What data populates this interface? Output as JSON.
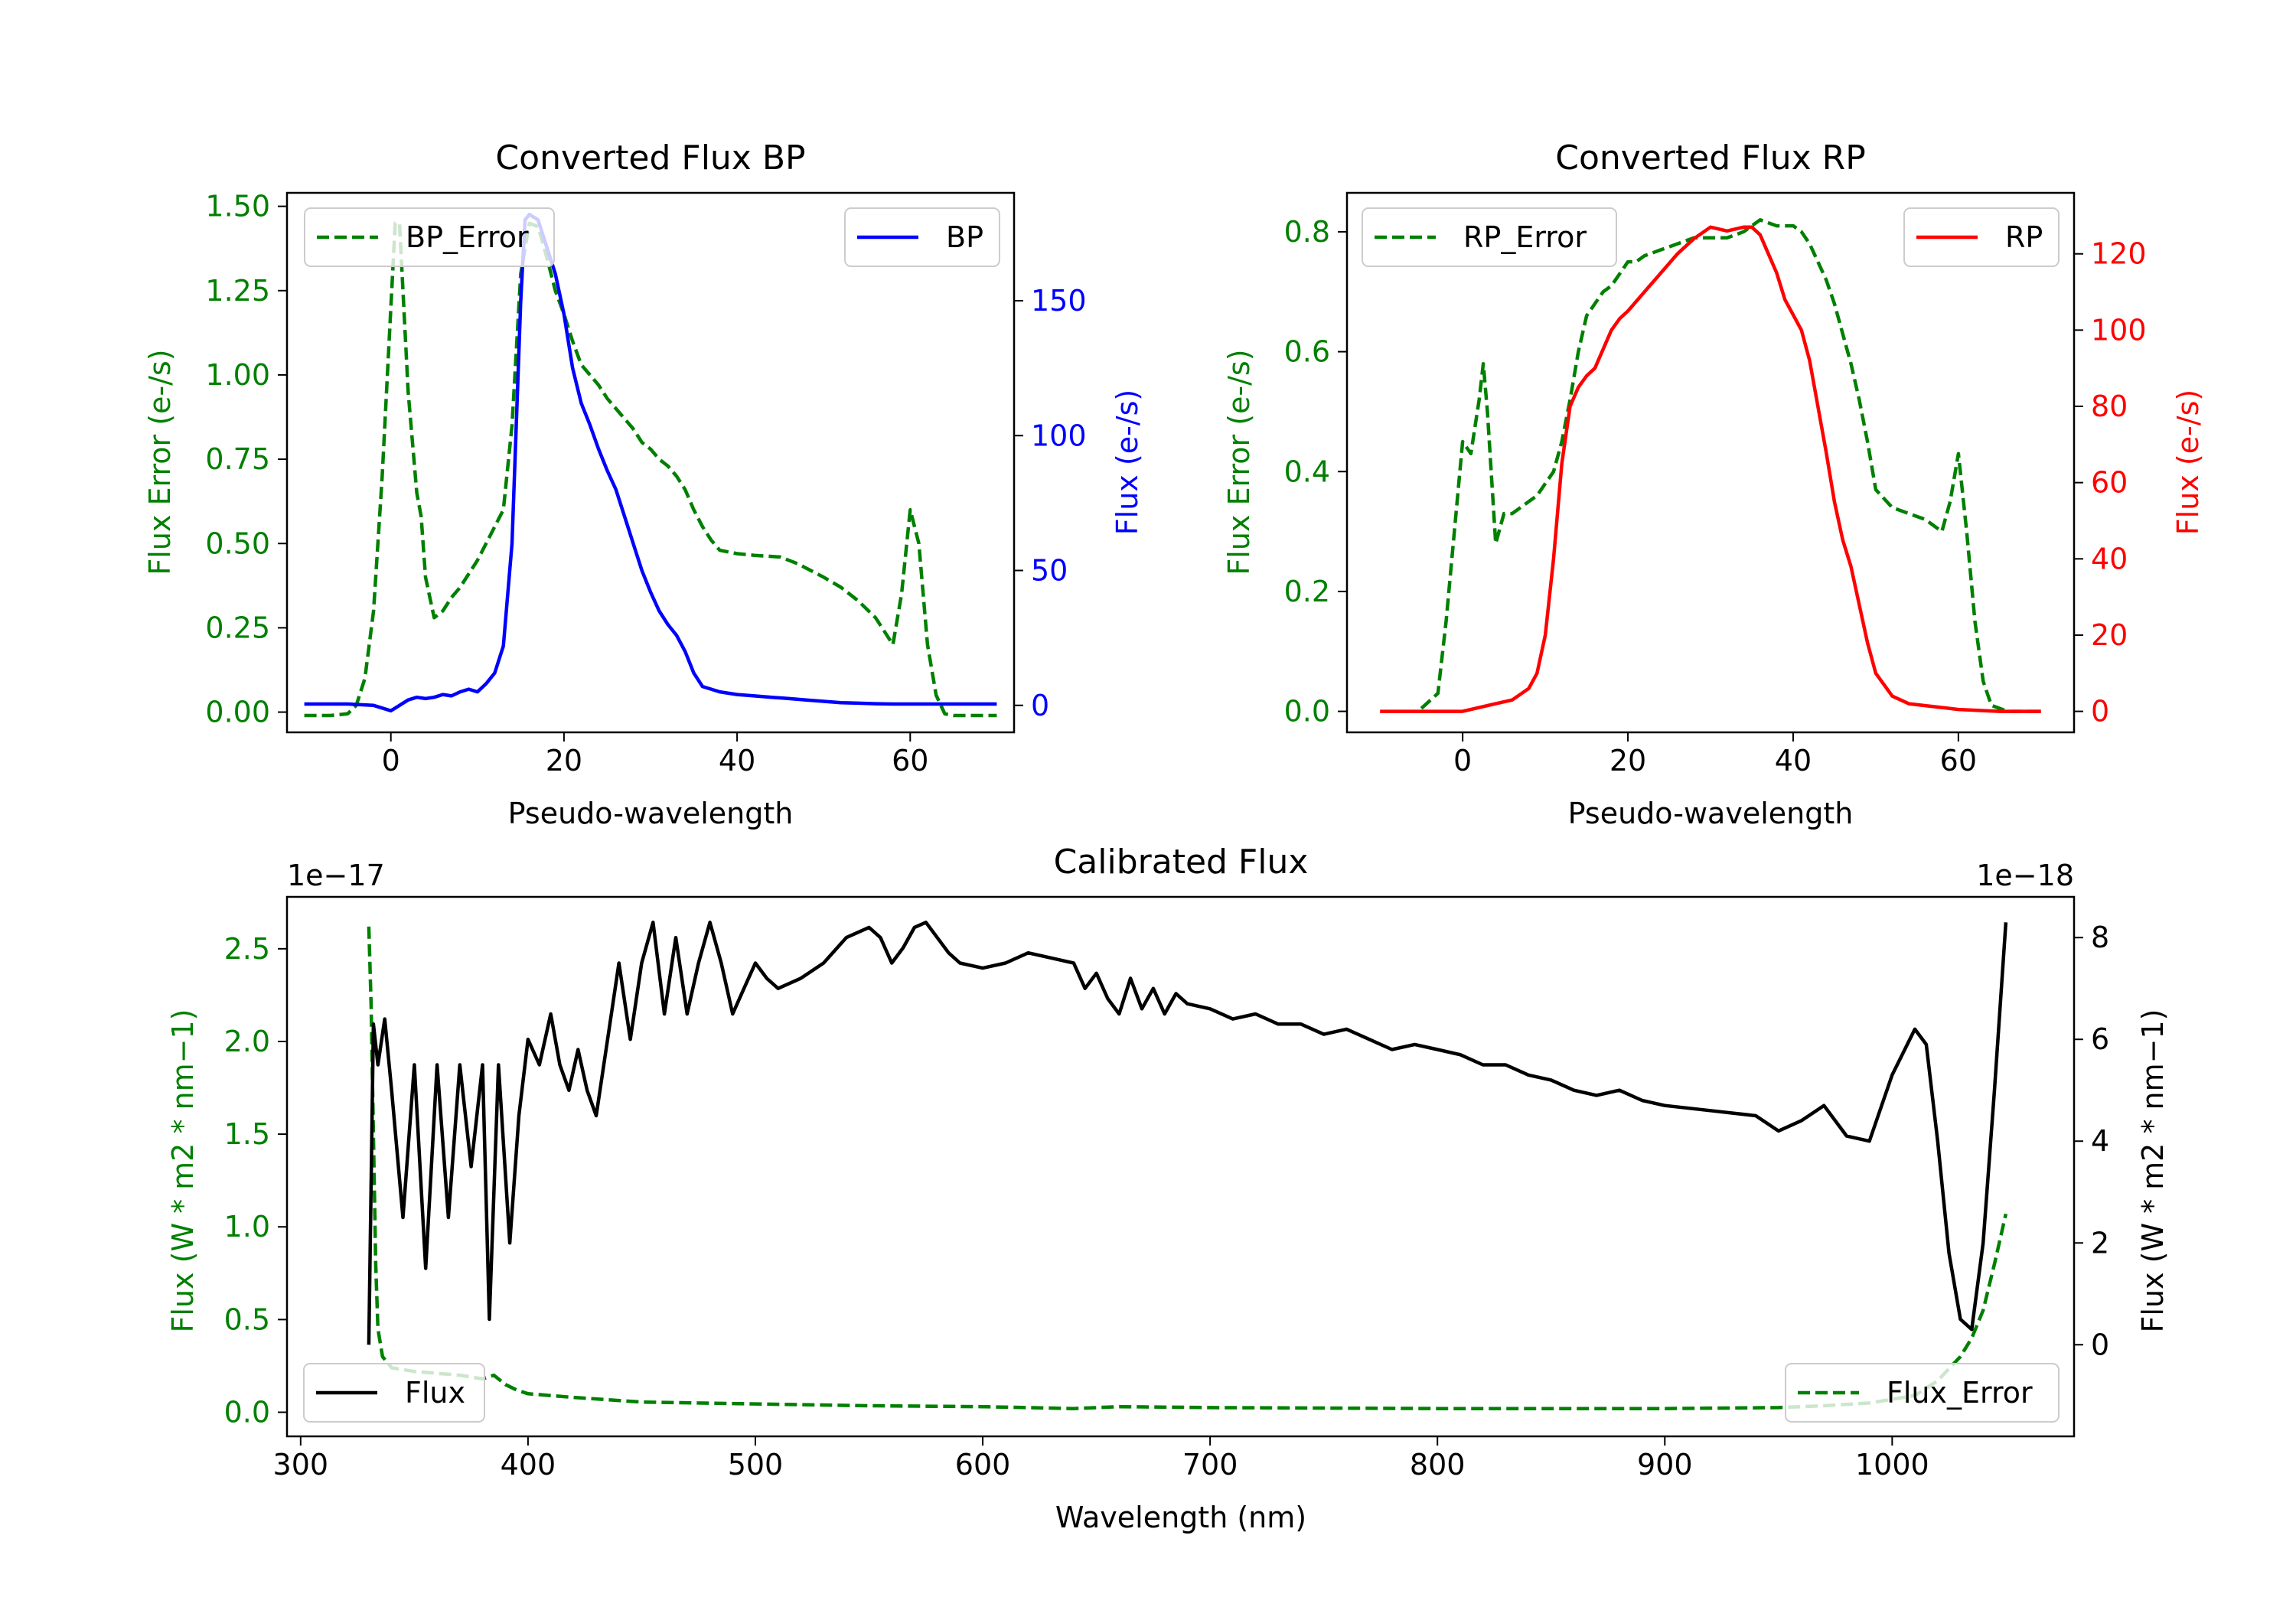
{
  "chart_data": [
    {
      "id": "bp",
      "type": "line",
      "title": "Converted Flux BP",
      "xlabel": "Pseudo-wavelength",
      "ylabel_left": "Flux Error (e-/s)",
      "ylabel_right": "Flux (e-/s)",
      "xlim": [
        -12,
        72
      ],
      "ylim_left": [
        -0.06,
        1.54
      ],
      "ylim_right": [
        -10,
        190
      ],
      "xticks": [
        0,
        20,
        40,
        60
      ],
      "yticks_left": [
        "0.00",
        "0.25",
        "0.50",
        "0.75",
        "1.00",
        "1.25",
        "1.50"
      ],
      "yticks_right": [
        "0",
        "50",
        "100",
        "150"
      ],
      "series": [
        {
          "name": "BP_Error",
          "axis": "left",
          "color": "#008000",
          "dash": "dashed",
          "x": [
            -10,
            -7,
            -5,
            -4,
            -3,
            -2,
            -1,
            0,
            0.5,
            1,
            2,
            3,
            3.5,
            4,
            5,
            6,
            7,
            8,
            9,
            10,
            11,
            12,
            13,
            14,
            15,
            16,
            17,
            18,
            19,
            20,
            21,
            22,
            23,
            24,
            25,
            26,
            27,
            28,
            29,
            30,
            31,
            32,
            33,
            34,
            35,
            36,
            37,
            38,
            40,
            42,
            45,
            47,
            50,
            52,
            54,
            56,
            57,
            58,
            59,
            60,
            61,
            62,
            63,
            64,
            65,
            67,
            69,
            70
          ],
          "y": [
            -0.01,
            -0.01,
            -0.005,
            0.02,
            0.1,
            0.3,
            0.7,
            1.2,
            1.45,
            1.45,
            0.95,
            0.65,
            0.58,
            0.4,
            0.28,
            0.3,
            0.34,
            0.37,
            0.41,
            0.45,
            0.5,
            0.55,
            0.6,
            0.85,
            1.3,
            1.45,
            1.44,
            1.35,
            1.25,
            1.18,
            1.1,
            1.03,
            1.0,
            0.97,
            0.93,
            0.9,
            0.87,
            0.84,
            0.8,
            0.78,
            0.75,
            0.73,
            0.7,
            0.66,
            0.6,
            0.55,
            0.51,
            0.48,
            0.47,
            0.465,
            0.46,
            0.44,
            0.4,
            0.37,
            0.33,
            0.28,
            0.24,
            0.2,
            0.35,
            0.6,
            0.5,
            0.2,
            0.05,
            -0.005,
            -0.01,
            -0.01,
            -0.01,
            -0.01
          ]
        },
        {
          "name": "BP",
          "axis": "right",
          "color": "#0000ff",
          "dash": "solid",
          "x": [
            -10,
            -5,
            -2,
            0,
            1,
            2,
            3,
            4,
            5,
            6,
            7,
            8,
            9,
            10,
            11,
            12,
            13,
            14,
            15,
            15.5,
            16,
            17,
            18,
            19,
            20,
            21,
            22,
            23,
            24,
            25,
            26,
            27,
            28,
            29,
            30,
            31,
            32,
            33,
            34,
            35,
            36,
            38,
            40,
            42,
            44,
            46,
            48,
            50,
            52,
            54,
            56,
            58,
            60,
            62,
            65,
            70
          ],
          "y": [
            0.5,
            0.5,
            0,
            -2,
            0,
            2,
            3,
            2.5,
            3,
            4,
            3.5,
            5,
            6,
            5,
            8,
            12,
            22,
            60,
            150,
            180,
            182,
            180,
            170,
            160,
            145,
            125,
            112,
            104,
            95,
            87,
            80,
            70,
            60,
            50,
            42,
            35,
            30,
            26,
            20,
            12,
            7,
            5,
            4,
            3.5,
            3,
            2.5,
            2,
            1.5,
            1,
            0.8,
            0.6,
            0.5,
            0.5,
            0.5,
            0.5,
            0.5
          ]
        }
      ],
      "legend": [
        {
          "label": "BP_Error",
          "position": "upper-left"
        },
        {
          "label": "BP",
          "position": "upper-right"
        }
      ]
    },
    {
      "id": "rp",
      "type": "line",
      "title": "Converted Flux RP",
      "xlabel": "Pseudo-wavelength",
      "ylabel_left": "Flux Error (e-/s)",
      "ylabel_right": "Flux (e-/s)",
      "xlim": [
        -14,
        74
      ],
      "ylim_left": [
        -0.035,
        0.865
      ],
      "ylim_right": [
        -5.5,
        136
      ],
      "xticks": [
        0,
        20,
        40,
        60
      ],
      "yticks_left": [
        "0.0",
        "0.2",
        "0.4",
        "0.6",
        "0.8"
      ],
      "yticks_right": [
        "0",
        "20",
        "40",
        "60",
        "80",
        "100",
        "120"
      ],
      "series": [
        {
          "name": "RP_Error",
          "axis": "left",
          "color": "#008000",
          "dash": "dashed",
          "x": [
            -5,
            -3,
            -2,
            -1,
            0,
            1,
            2,
            2.5,
            3,
            4,
            5,
            6,
            7,
            8,
            9,
            10,
            11,
            12,
            13,
            14,
            15,
            16,
            17,
            18,
            19,
            20,
            21,
            22,
            24,
            26,
            28,
            30,
            32,
            34,
            35,
            36,
            38,
            40,
            41,
            42,
            43,
            44,
            45,
            46,
            47,
            48,
            49,
            50,
            52,
            54,
            56,
            57,
            58,
            59,
            60,
            61,
            62,
            63,
            64,
            66,
            70
          ],
          "y": [
            0.005,
            0.03,
            0.15,
            0.3,
            0.45,
            0.43,
            0.52,
            0.58,
            0.5,
            0.28,
            0.33,
            0.33,
            0.34,
            0.35,
            0.36,
            0.38,
            0.4,
            0.45,
            0.52,
            0.6,
            0.66,
            0.68,
            0.7,
            0.71,
            0.73,
            0.75,
            0.75,
            0.76,
            0.77,
            0.78,
            0.79,
            0.79,
            0.79,
            0.8,
            0.81,
            0.82,
            0.81,
            0.81,
            0.8,
            0.78,
            0.75,
            0.72,
            0.68,
            0.63,
            0.58,
            0.52,
            0.45,
            0.37,
            0.34,
            0.33,
            0.32,
            0.31,
            0.3,
            0.35,
            0.43,
            0.3,
            0.15,
            0.05,
            0.01,
            0,
            0
          ]
        },
        {
          "name": "RP",
          "axis": "right",
          "color": "#ff0000",
          "dash": "solid",
          "x": [
            -10,
            -5,
            0,
            2,
            4,
            6,
            8,
            9,
            10,
            11,
            12,
            13,
            14,
            15,
            16,
            17,
            18,
            19,
            20,
            22,
            24,
            26,
            28,
            30,
            32,
            34,
            35,
            36,
            37,
            38,
            39,
            40,
            41,
            42,
            43,
            44,
            45,
            46,
            47,
            48,
            49,
            50,
            52,
            54,
            56,
            58,
            60,
            65,
            70
          ],
          "y": [
            0,
            0,
            0,
            1,
            2,
            3,
            6,
            10,
            20,
            40,
            65,
            80,
            85,
            88,
            90,
            95,
            100,
            103,
            105,
            110,
            115,
            120,
            124,
            127,
            126,
            127,
            127,
            125,
            120,
            115,
            108,
            104,
            100,
            92,
            80,
            68,
            55,
            45,
            38,
            28,
            18,
            10,
            4,
            2,
            1.5,
            1,
            0.5,
            0,
            0
          ]
        }
      ],
      "legend": [
        {
          "label": "RP_Error",
          "position": "upper-left"
        },
        {
          "label": "RP",
          "position": "upper-right"
        }
      ]
    },
    {
      "id": "cal",
      "type": "line",
      "title": "Calibrated Flux",
      "xlabel": "Wavelength (nm)",
      "ylabel_left": "Flux (W * m2 * nm−1)",
      "ylabel_right": "Flux (W * m2 * nm−1)",
      "offset_left": "1e−17",
      "offset_right": "1e−18",
      "xlim": [
        294,
        1080
      ],
      "ylim_left": [
        -0.13,
        2.78
      ],
      "ylim_right": [
        -1.8,
        8.8
      ],
      "xticks": [
        "300",
        "400",
        "500",
        "600",
        "700",
        "800",
        "900",
        "1000"
      ],
      "yticks_left": [
        "0.0",
        "0.5",
        "1.0",
        "1.5",
        "2.0",
        "2.5"
      ],
      "yticks_right": [
        "0",
        "2",
        "4",
        "6",
        "8"
      ],
      "series": [
        {
          "name": "Flux_Error",
          "axis": "left",
          "color": "#008000",
          "dash": "dashed",
          "x": [
            330,
            331,
            332,
            333,
            334,
            336,
            340,
            345,
            350,
            360,
            370,
            375,
            380,
            385,
            390,
            395,
            400,
            420,
            450,
            500,
            550,
            600,
            640,
            660,
            700,
            800,
            900,
            950,
            970,
            990,
            1010,
            1020,
            1030,
            1035,
            1040,
            1045,
            1050
          ],
          "y": [
            2.62,
            2.2,
            1.5,
            0.8,
            0.45,
            0.3,
            0.24,
            0.23,
            0.22,
            0.21,
            0.2,
            0.19,
            0.18,
            0.2,
            0.15,
            0.12,
            0.1,
            0.08,
            0.055,
            0.045,
            0.035,
            0.03,
            0.02,
            0.03,
            0.025,
            0.02,
            0.02,
            0.025,
            0.035,
            0.05,
            0.09,
            0.17,
            0.3,
            0.4,
            0.55,
            0.8,
            1.07
          ]
        },
        {
          "name": "Flux",
          "axis": "right",
          "color": "#000000",
          "dash": "solid",
          "x": [
            330,
            332,
            334,
            337,
            340,
            345,
            350,
            355,
            360,
            365,
            370,
            375,
            380,
            383,
            387,
            392,
            396,
            400,
            405,
            410,
            414,
            418,
            422,
            426,
            430,
            435,
            440,
            445,
            450,
            455,
            460,
            465,
            470,
            475,
            480,
            485,
            490,
            495,
            500,
            505,
            510,
            520,
            530,
            540,
            550,
            555,
            560,
            565,
            570,
            575,
            580,
            585,
            590,
            600,
            610,
            620,
            630,
            640,
            645,
            650,
            655,
            660,
            665,
            670,
            675,
            680,
            685,
            690,
            700,
            710,
            720,
            730,
            740,
            750,
            760,
            770,
            780,
            790,
            800,
            810,
            820,
            830,
            840,
            850,
            860,
            870,
            880,
            890,
            900,
            920,
            940,
            950,
            960,
            970,
            980,
            990,
            1000,
            1010,
            1015,
            1020,
            1025,
            1030,
            1035,
            1040,
            1045,
            1050
          ],
          "y": [
            0,
            6.3,
            5.5,
            6.4,
            5.0,
            2.5,
            5.5,
            1.5,
            5.5,
            2.5,
            5.5,
            3.5,
            5.5,
            0.5,
            5.5,
            2.0,
            4.5,
            6.0,
            5.5,
            6.5,
            5.5,
            5.0,
            5.8,
            5.0,
            4.5,
            6.0,
            7.5,
            6.0,
            7.5,
            8.3,
            6.5,
            8.0,
            6.5,
            7.5,
            8.3,
            7.5,
            6.5,
            7.0,
            7.5,
            7.2,
            7.0,
            7.2,
            7.5,
            8.0,
            8.2,
            8.0,
            7.5,
            7.8,
            8.2,
            8.3,
            8.0,
            7.7,
            7.5,
            7.4,
            7.5,
            7.7,
            7.6,
            7.5,
            7.0,
            7.3,
            6.8,
            6.5,
            7.2,
            6.6,
            7.0,
            6.5,
            6.9,
            6.7,
            6.6,
            6.4,
            6.5,
            6.3,
            6.3,
            6.1,
            6.2,
            6.0,
            5.8,
            5.9,
            5.8,
            5.7,
            5.5,
            5.5,
            5.3,
            5.2,
            5.0,
            4.9,
            5.0,
            4.8,
            4.7,
            4.6,
            4.5,
            4.2,
            4.4,
            4.7,
            4.1,
            4.0,
            5.3,
            6.2,
            5.9,
            4.0,
            1.8,
            0.5,
            0.3,
            2.0,
            5.0,
            8.3
          ]
        }
      ],
      "legend": [
        {
          "label": "Flux",
          "position": "lower-left"
        },
        {
          "label": "Flux_Error",
          "position": "lower-right"
        }
      ]
    }
  ]
}
